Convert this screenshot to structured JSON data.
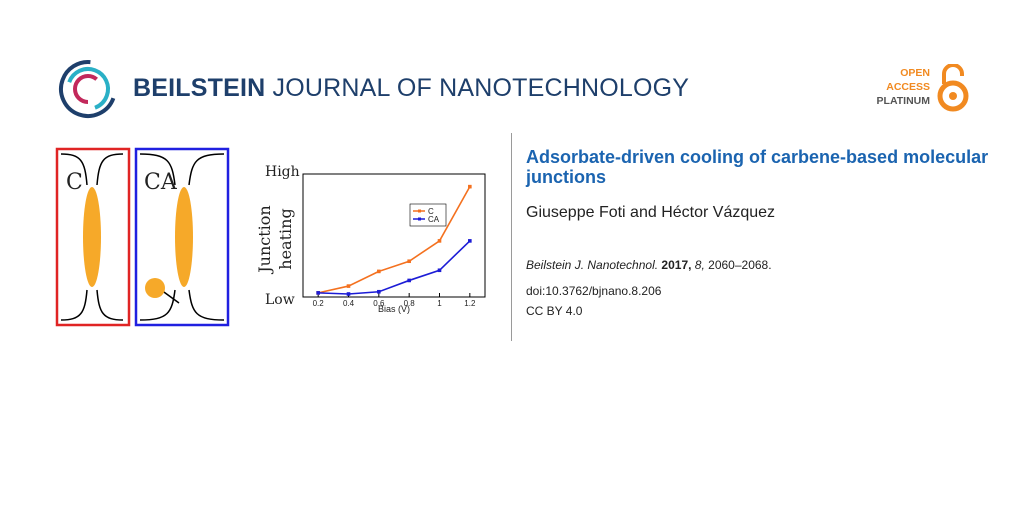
{
  "header": {
    "journal_bold": "BEILSTEIN",
    "journal_light": "JOURNAL OF NANOTECHNOLOGY",
    "badge": {
      "line1": "OPEN",
      "line2": "ACCESS",
      "line3": "PLATINUM"
    }
  },
  "graphic": {
    "panel_c_label": "C",
    "panel_ca_label": "CA"
  },
  "chart_data": {
    "type": "line",
    "xlabel": "Bias (V)",
    "ylabel_line1": "Junction",
    "ylabel_line2": "heating",
    "y_tick_high": "High",
    "y_tick_low": "Low",
    "x_ticks": [
      "0.2",
      "0.4",
      "0.6",
      "0.8",
      "1",
      "1.2"
    ],
    "xlim": [
      0.1,
      1.3
    ],
    "ylim": [
      0,
      1
    ],
    "y_ticks_numeric": false,
    "legend_position": "top-left",
    "series": [
      {
        "name": "C",
        "color": "#f4711f",
        "x": [
          0.2,
          0.4,
          0.6,
          0.8,
          1.0,
          1.2
        ],
        "y": [
          0.01,
          0.07,
          0.2,
          0.29,
          0.47,
          0.95
        ]
      },
      {
        "name": "CA",
        "color": "#1c1cd6",
        "x": [
          0.2,
          0.4,
          0.6,
          0.8,
          1.0,
          1.2
        ],
        "y": [
          0.01,
          0.0,
          0.02,
          0.12,
          0.21,
          0.47
        ]
      }
    ]
  },
  "article": {
    "title": "Adsorbate-driven cooling of carbene-based molecular junctions",
    "authors": "Giuseppe Foti and Héctor Vázquez",
    "journal_abbrev": "Beilstein J. Nanotechnol.",
    "year": "2017,",
    "volume": "8,",
    "pages": "2060–2068.",
    "doi": "doi:10.3762/bjnano.8.206",
    "license": "CC BY 4.0"
  },
  "colors": {
    "journal_blue": "#1e3f6b",
    "title_blue": "#1b64b0",
    "oa_orange": "#f18a21",
    "molecule_orange": "#f6a929",
    "panel_c_border": "#e02424",
    "panel_ca_border": "#2020e0"
  }
}
